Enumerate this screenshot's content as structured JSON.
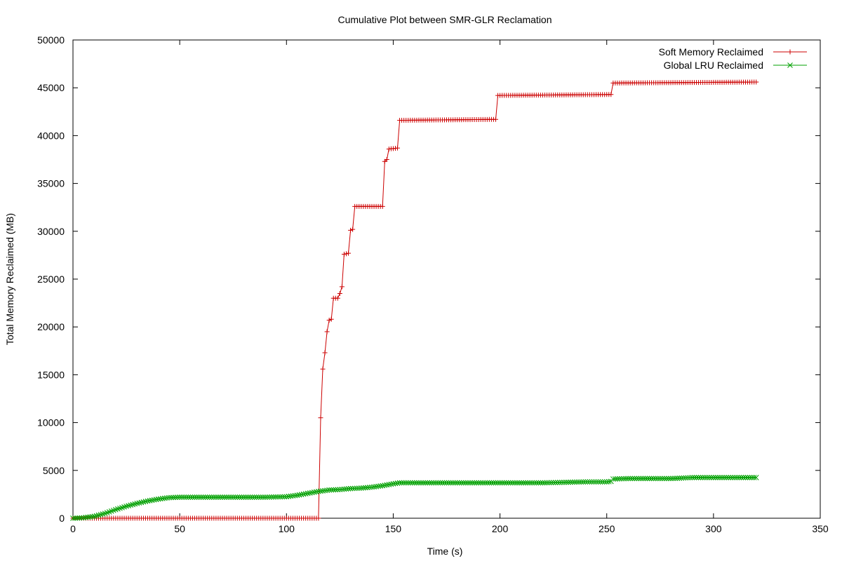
{
  "chart_data": {
    "type": "line",
    "title": "Cumulative Plot between SMR-GLR Reclamation",
    "xlabel": "Time (s)",
    "ylabel": "Total Memory Reclaimed (MB)",
    "xlim": [
      0,
      350
    ],
    "ylim": [
      0,
      50000
    ],
    "xticks": [
      0,
      50,
      100,
      150,
      200,
      250,
      300,
      350
    ],
    "yticks": [
      0,
      5000,
      10000,
      15000,
      20000,
      25000,
      30000,
      35000,
      40000,
      45000,
      50000
    ],
    "grid": false,
    "legend_position": "top-right",
    "series": [
      {
        "name": "Soft Memory Reclaimed",
        "color": "#cc0000",
        "marker": "plus",
        "points": [
          [
            0,
            0
          ],
          [
            115,
            0
          ],
          [
            116,
            10500
          ],
          [
            117,
            15600
          ],
          [
            118,
            17300
          ],
          [
            119,
            19500
          ],
          [
            120,
            20700
          ],
          [
            121,
            20800
          ],
          [
            122,
            23000
          ],
          [
            124,
            23000
          ],
          [
            125,
            23500
          ],
          [
            126,
            24200
          ],
          [
            127,
            27600
          ],
          [
            129,
            27700
          ],
          [
            130,
            30100
          ],
          [
            131,
            30200
          ],
          [
            132,
            32600
          ],
          [
            145,
            32600
          ],
          [
            146,
            37300
          ],
          [
            147,
            37500
          ],
          [
            148,
            38600
          ],
          [
            152,
            38700
          ],
          [
            153,
            41600
          ],
          [
            198,
            41700
          ],
          [
            199,
            44200
          ],
          [
            252,
            44300
          ],
          [
            253,
            45500
          ],
          [
            320,
            45600
          ]
        ]
      },
      {
        "name": "Global LRU Reclaimed",
        "color": "#00a000",
        "marker": "cross",
        "points": [
          [
            0,
            0
          ],
          [
            5,
            50
          ],
          [
            10,
            200
          ],
          [
            15,
            500
          ],
          [
            20,
            900
          ],
          [
            25,
            1250
          ],
          [
            30,
            1550
          ],
          [
            35,
            1800
          ],
          [
            40,
            2000
          ],
          [
            45,
            2150
          ],
          [
            50,
            2200
          ],
          [
            60,
            2200
          ],
          [
            70,
            2200
          ],
          [
            80,
            2200
          ],
          [
            90,
            2200
          ],
          [
            100,
            2250
          ],
          [
            105,
            2400
          ],
          [
            110,
            2600
          ],
          [
            115,
            2800
          ],
          [
            120,
            2950
          ],
          [
            125,
            3000
          ],
          [
            130,
            3100
          ],
          [
            135,
            3150
          ],
          [
            140,
            3250
          ],
          [
            145,
            3400
          ],
          [
            150,
            3600
          ],
          [
            153,
            3700
          ],
          [
            160,
            3700
          ],
          [
            170,
            3700
          ],
          [
            180,
            3700
          ],
          [
            190,
            3700
          ],
          [
            200,
            3700
          ],
          [
            210,
            3700
          ],
          [
            220,
            3700
          ],
          [
            230,
            3750
          ],
          [
            240,
            3800
          ],
          [
            250,
            3800
          ],
          [
            252,
            3850
          ],
          [
            253,
            4100
          ],
          [
            260,
            4150
          ],
          [
            270,
            4150
          ],
          [
            280,
            4150
          ],
          [
            290,
            4250
          ],
          [
            300,
            4250
          ],
          [
            310,
            4250
          ],
          [
            320,
            4250
          ]
        ]
      }
    ]
  }
}
